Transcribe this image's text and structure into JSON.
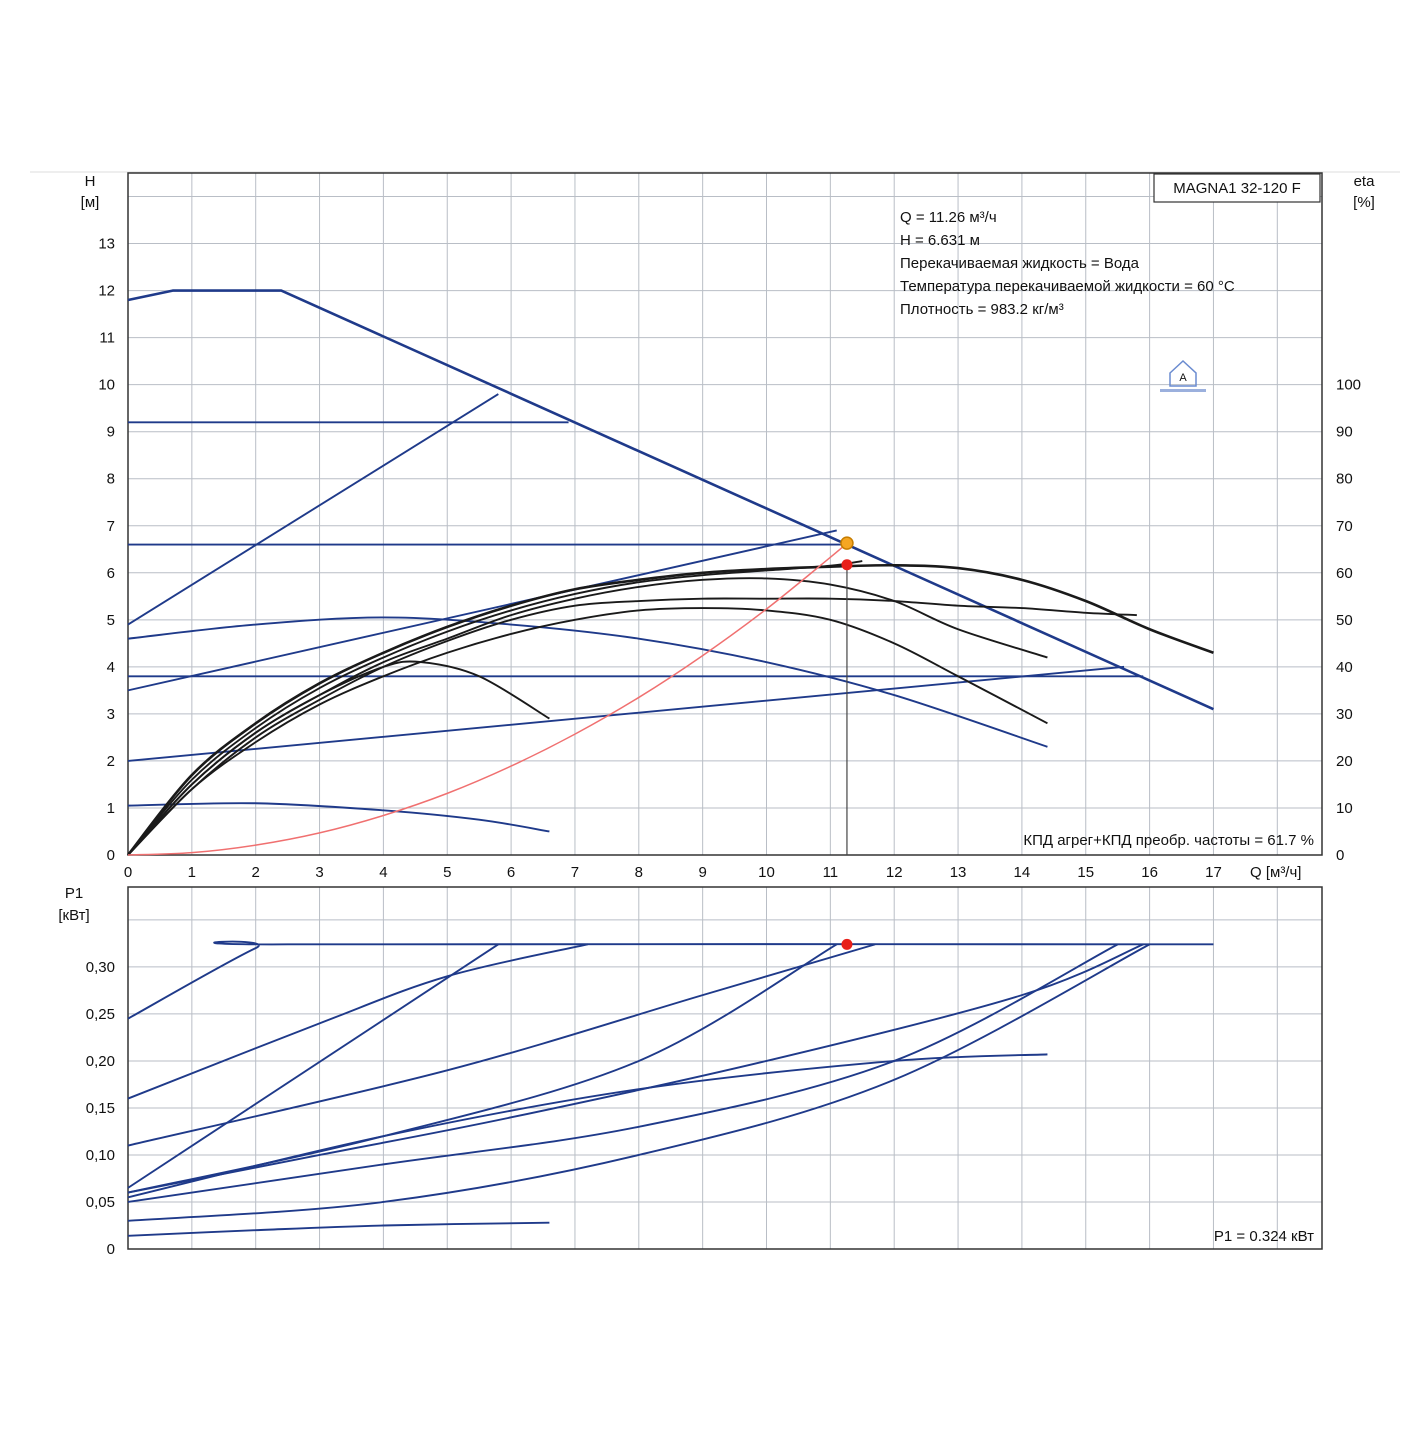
{
  "chart_data": [
    {
      "type": "line",
      "model_label": "MAGNA1 32-120 F",
      "y_axis": {
        "symbol": "H",
        "unit": "[м]",
        "range": [
          0,
          14.5
        ],
        "ticks": [
          0,
          1,
          2,
          3,
          4,
          5,
          6,
          7,
          8,
          9,
          10,
          11,
          12,
          13
        ]
      },
      "y2_axis": {
        "symbol": "eta",
        "unit": "[%]",
        "range": [
          0,
          145
        ],
        "ticks": [
          0,
          10,
          20,
          30,
          40,
          50,
          60,
          70,
          80,
          90,
          100
        ]
      },
      "x_axis": {
        "label": "Q [м³/ч]",
        "range": [
          0,
          18.7
        ],
        "ticks": [
          0,
          1,
          2,
          3,
          4,
          5,
          6,
          7,
          8,
          9,
          10,
          11,
          12,
          13,
          14,
          15,
          16,
          17
        ]
      },
      "info_lines": [
        "Q = 11.26 м³/ч",
        "H = 6.631 м",
        "Перекачиваемая жидкость = Вода",
        "Температура перекачиваемой жидкости = 60 °C",
        "Плотность = 983.2 кг/м³"
      ],
      "efficiency_note": "КПД агрег+КПД преобр. частоты = 61.7 %",
      "duty_point": {
        "q": 11.26,
        "h": 6.631,
        "eta": 61.7
      },
      "colors": {
        "pump_curves": "#1f3a8a",
        "efficiency_curves": "#1a1a1a",
        "system_curve": "#f07070",
        "duty_marker": "#e8201a",
        "duty_ring": "#f5a623"
      },
      "series": [
        {
          "group": "pump",
          "points": [
            [
              0,
              11.8
            ],
            [
              0.7,
              12
            ],
            [
              2.4,
              12
            ],
            [
              17,
              3.1
            ]
          ]
        },
        {
          "group": "pump",
          "points": [
            [
              0,
              9.2
            ],
            [
              6.9,
              9.2
            ]
          ]
        },
        {
          "group": "pump",
          "points": [
            [
              0,
              6.6
            ],
            [
              11.26,
              6.6
            ]
          ]
        },
        {
          "group": "pump",
          "points": [
            [
              0,
              4.9
            ],
            [
              5.8,
              9.8
            ]
          ]
        },
        {
          "group": "pump",
          "points": [
            [
              0,
              3.5
            ],
            [
              11.1,
              6.9
            ]
          ]
        },
        {
          "group": "pump",
          "points": [
            [
              0,
              3.8
            ],
            [
              15.9,
              3.8
            ]
          ]
        },
        {
          "group": "pump",
          "points": [
            [
              0,
              2
            ],
            [
              15.6,
              4
            ]
          ]
        },
        {
          "group": "pump",
          "points": [
            [
              0,
              4.6
            ],
            [
              2,
              4.9
            ],
            [
              4,
              5.05
            ],
            [
              6,
              4.9
            ],
            [
              8,
              4.6
            ],
            [
              10,
              4.1
            ],
            [
              12,
              3.4
            ],
            [
              14.4,
              2.3
            ]
          ]
        },
        {
          "group": "pump",
          "points": [
            [
              0,
              1.05
            ],
            [
              2,
              1.1
            ],
            [
              4,
              0.95
            ],
            [
              5.5,
              0.75
            ],
            [
              6.6,
              0.5
            ]
          ]
        },
        {
          "group": "eta",
          "points": [
            [
              0,
              0
            ],
            [
              1,
              14
            ],
            [
              2,
              24
            ],
            [
              3,
              32
            ],
            [
              4,
              38
            ],
            [
              5,
              43
            ],
            [
              6,
              47
            ],
            [
              7,
              50
            ],
            [
              8,
              52
            ],
            [
              9,
              52.5
            ],
            [
              10,
              52
            ],
            [
              11,
              50
            ],
            [
              12,
              45
            ],
            [
              13,
              38
            ],
            [
              14.4,
              28
            ]
          ]
        },
        {
          "group": "eta",
          "points": [
            [
              0,
              0
            ],
            [
              1,
              15
            ],
            [
              2,
              26
            ],
            [
              3,
              34
            ],
            [
              4,
              41
            ],
            [
              5,
              46
            ],
            [
              6,
              51
            ],
            [
              7,
              54.5
            ],
            [
              8,
              57
            ],
            [
              9,
              58.5
            ],
            [
              10,
              58.8
            ],
            [
              11,
              57.5
            ],
            [
              12,
              54
            ],
            [
              13,
              48
            ],
            [
              14.4,
              42
            ]
          ]
        },
        {
          "group": "eta",
          "points": [
            [
              0,
              0
            ],
            [
              1,
              14
            ],
            [
              2,
              25
            ],
            [
              3,
              33
            ],
            [
              4,
              40
            ],
            [
              5,
              45.5
            ],
            [
              6,
              50
            ],
            [
              7,
              53
            ],
            [
              8,
              54
            ],
            [
              9,
              54.5
            ],
            [
              10,
              54.5
            ],
            [
              11,
              54.5
            ],
            [
              12,
              54
            ],
            [
              13,
              53
            ],
            [
              14,
              52.5
            ],
            [
              15,
              51.5
            ],
            [
              15.8,
              51
            ]
          ]
        },
        {
          "group": "eta",
          "points": [
            [
              0,
              0
            ],
            [
              1,
              17
            ],
            [
              2,
              28
            ],
            [
              3,
              36.5
            ],
            [
              4,
              43
            ],
            [
              5,
              48.5
            ],
            [
              6,
              53
            ],
            [
              7,
              56.5
            ],
            [
              8,
              58.5
            ],
            [
              9,
              60
            ],
            [
              10,
              60.8
            ],
            [
              11,
              61.3
            ],
            [
              12,
              61.6
            ],
            [
              13,
              61
            ],
            [
              14,
              58.5
            ],
            [
              15,
              54
            ],
            [
              16,
              48
            ],
            [
              17,
              43
            ]
          ]
        },
        {
          "group": "eta",
          "points": [
            [
              0,
              0
            ],
            [
              1,
              16
            ],
            [
              2,
              27
            ],
            [
              3,
              35.5
            ],
            [
              4,
              42
            ],
            [
              5,
              47.5
            ],
            [
              6,
              52
            ],
            [
              7,
              55.5
            ],
            [
              8,
              58
            ],
            [
              9,
              59.5
            ],
            [
              10,
              60.5
            ],
            [
              11,
              61.5
            ],
            [
              11.5,
              62.5
            ]
          ]
        },
        {
          "group": "eta",
          "points": [
            [
              0,
              0
            ],
            [
              1,
              15
            ],
            [
              2,
              26
            ],
            [
              3,
              34
            ],
            [
              4,
              40
            ],
            [
              4.6,
              41
            ],
            [
              5.5,
              38
            ],
            [
              6.6,
              29
            ]
          ]
        },
        {
          "group": "system",
          "points": [
            [
              0,
              0
            ],
            [
              1,
              0.05
            ],
            [
              2,
              0.21
            ],
            [
              3,
              0.47
            ],
            [
              4,
              0.84
            ],
            [
              5,
              1.31
            ],
            [
              6,
              1.89
            ],
            [
              7,
              2.57
            ],
            [
              8,
              3.35
            ],
            [
              9,
              4.24
            ],
            [
              10,
              5.23
            ],
            [
              11,
              6.33
            ],
            [
              11.26,
              6.63
            ]
          ]
        }
      ]
    },
    {
      "type": "line",
      "y_axis": {
        "symbol": "P1",
        "unit": "[кВт]",
        "range": [
          0,
          0.385
        ],
        "ticks": [
          "0",
          "0,05",
          "0,10",
          "0,15",
          "0,20",
          "0,25",
          "0,30"
        ],
        "tick_values": [
          0,
          0.05,
          0.1,
          0.15,
          0.2,
          0.25,
          0.3
        ]
      },
      "x_axis": {
        "range": [
          0,
          18.7
        ]
      },
      "power_note": "P1 = 0.324 кВт",
      "duty_point": {
        "q": 11.26,
        "p1": 0.324
      },
      "series": [
        {
          "group": "power",
          "points": [
            [
              0,
              0.245
            ],
            [
              2,
              0.32
            ],
            [
              2.5,
              0.324
            ],
            [
              17,
              0.324
            ]
          ]
        },
        {
          "group": "power",
          "points": [
            [
              0,
              0.16
            ],
            [
              3,
              0.24
            ],
            [
              5,
              0.29
            ],
            [
              7.2,
              0.324
            ]
          ]
        },
        {
          "group": "power",
          "points": [
            [
              0,
              0.065
            ],
            [
              5.8,
              0.324
            ]
          ]
        },
        {
          "group": "power",
          "points": [
            [
              0,
              0.11
            ],
            [
              5,
              0.19
            ],
            [
              9,
              0.27
            ],
            [
              11.7,
              0.324
            ]
          ]
        },
        {
          "group": "power",
          "points": [
            [
              0,
              0.06
            ],
            [
              4,
              0.12
            ],
            [
              8,
              0.2
            ],
            [
              11.1,
              0.324
            ]
          ]
        },
        {
          "group": "power",
          "points": [
            [
              0,
              0.06
            ],
            [
              3,
              0.1
            ],
            [
              6,
              0.14
            ],
            [
              10,
              0.2
            ],
            [
              14,
              0.27
            ],
            [
              15.9,
              0.324
            ]
          ]
        },
        {
          "group": "power",
          "points": [
            [
              0,
              0.05
            ],
            [
              4,
              0.09
            ],
            [
              8,
              0.13
            ],
            [
              12,
              0.2
            ],
            [
              15.5,
              0.324
            ]
          ]
        },
        {
          "group": "power",
          "points": [
            [
              0,
              0.03
            ],
            [
              4,
              0.05
            ],
            [
              8,
              0.1
            ],
            [
              12,
              0.18
            ],
            [
              16,
              0.324
            ]
          ]
        },
        {
          "group": "power",
          "points": [
            [
              0,
              0.055
            ],
            [
              4,
              0.12
            ],
            [
              8,
              0.17
            ],
            [
              12,
              0.2
            ],
            [
              14.4,
              0.207
            ]
          ]
        },
        {
          "group": "power",
          "points": [
            [
              0,
              0.014
            ],
            [
              2,
              0.02
            ],
            [
              4,
              0.025
            ],
            [
              6.6,
              0.028
            ]
          ]
        }
      ]
    }
  ]
}
